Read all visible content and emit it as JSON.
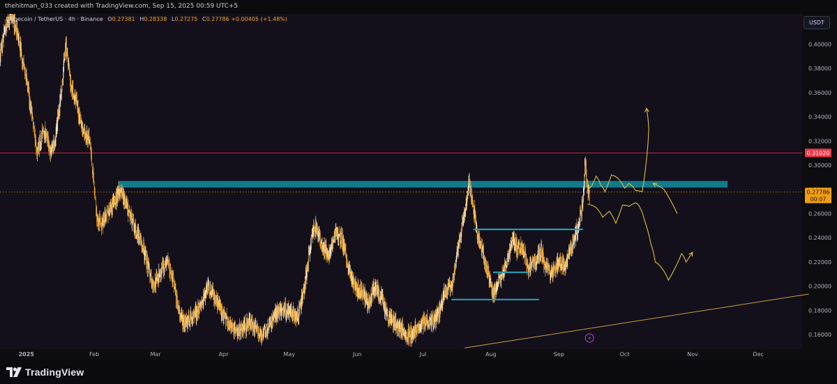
{
  "header": {
    "credit": "thehitman_033 created with TradingView.com, Sep 15, 2025 00:59 UTC+5"
  },
  "legend": {
    "symbol": "Dogecoin / TetherUS · 4h · Binance",
    "open_label": "O",
    "open": "0.27381",
    "high_label": "H",
    "high": "0.28338",
    "low_label": "L",
    "low": "0.27275",
    "close_label": "C",
    "close": "0.27786",
    "change": "+0.00405 (+1.48%)"
  },
  "currency_button": "USDT",
  "footer": {
    "brand": "TradingView"
  },
  "colors": {
    "background": "#130f1b",
    "candle": "#f5a524",
    "candle_highlight": "#ffffff",
    "resistance_zone": "#127a8a",
    "support_line": "#2a9bb0",
    "red_level": "#f23645",
    "price_label": "#f59e0b",
    "projection": "#d9c142",
    "trendline": "#c9a23a",
    "event_icon": "#b04fd6"
  },
  "icons": {
    "event": "lightning-icon",
    "logo": "tradingview-logo-icon"
  },
  "chart_data": {
    "type": "candlestick",
    "y_axis": {
      "range": [
        0.148,
        0.425
      ],
      "ticks": [
        0.16,
        0.18,
        0.2,
        0.22,
        0.24,
        0.26,
        0.28,
        0.3,
        0.32,
        0.34,
        0.36,
        0.38,
        0.4
      ],
      "tick_labels": [
        "0.16000",
        "0.18000",
        "0.20000",
        "0.22000",
        "0.24000",
        "0.26000",
        "0.28000",
        "0.30000",
        "0.32000",
        "0.34000",
        "0.36000",
        "0.38000",
        "0.40000"
      ],
      "position": "right"
    },
    "x_axis": {
      "start": "2024-12-20",
      "end": "2025-12-21",
      "month_labels": [
        {
          "date": "2025-01-01",
          "label": "2025",
          "bold": true
        },
        {
          "date": "2025-02-01",
          "label": "Feb"
        },
        {
          "date": "2025-03-01",
          "label": "Mar"
        },
        {
          "date": "2025-04-01",
          "label": "Apr"
        },
        {
          "date": "2025-05-01",
          "label": "May"
        },
        {
          "date": "2025-06-01",
          "label": "Jun"
        },
        {
          "date": "2025-07-01",
          "label": "Jul"
        },
        {
          "date": "2025-08-01",
          "label": "Aug"
        },
        {
          "date": "2025-09-01",
          "label": "Sep"
        },
        {
          "date": "2025-10-01",
          "label": "Oct"
        },
        {
          "date": "2025-11-01",
          "label": "Nov"
        },
        {
          "date": "2025-12-01",
          "label": "Dec"
        }
      ]
    },
    "price_path": [
      [
        "2024-12-20",
        0.39
      ],
      [
        "2024-12-22",
        0.41
      ],
      [
        "2024-12-25",
        0.425
      ],
      [
        "2024-12-28",
        0.41
      ],
      [
        "2024-12-31",
        0.38
      ],
      [
        "2025-01-02",
        0.36
      ],
      [
        "2025-01-04",
        0.335
      ],
      [
        "2025-01-06",
        0.31
      ],
      [
        "2025-01-09",
        0.33
      ],
      [
        "2025-01-12",
        0.31
      ],
      [
        "2025-01-14",
        0.32
      ],
      [
        "2025-01-17",
        0.36
      ],
      [
        "2025-01-19",
        0.4
      ],
      [
        "2025-01-21",
        0.37
      ],
      [
        "2025-01-24",
        0.35
      ],
      [
        "2025-01-27",
        0.33
      ],
      [
        "2025-01-30",
        0.32
      ],
      [
        "2025-02-02",
        0.26
      ],
      [
        "2025-02-04",
        0.25
      ],
      [
        "2025-02-07",
        0.26
      ],
      [
        "2025-02-10",
        0.27
      ],
      [
        "2025-02-13",
        0.28
      ],
      [
        "2025-02-16",
        0.265
      ],
      [
        "2025-02-19",
        0.25
      ],
      [
        "2025-02-22",
        0.24
      ],
      [
        "2025-02-25",
        0.22
      ],
      [
        "2025-02-28",
        0.2
      ],
      [
        "2025-03-03",
        0.21
      ],
      [
        "2025-03-06",
        0.22
      ],
      [
        "2025-03-09",
        0.205
      ],
      [
        "2025-03-12",
        0.175
      ],
      [
        "2025-03-15",
        0.17
      ],
      [
        "2025-03-18",
        0.175
      ],
      [
        "2025-03-21",
        0.18
      ],
      [
        "2025-03-25",
        0.2
      ],
      [
        "2025-03-28",
        0.19
      ],
      [
        "2025-04-01",
        0.175
      ],
      [
        "2025-04-04",
        0.168
      ],
      [
        "2025-04-07",
        0.163
      ],
      [
        "2025-04-10",
        0.165
      ],
      [
        "2025-04-13",
        0.17
      ],
      [
        "2025-04-16",
        0.163
      ],
      [
        "2025-04-19",
        0.16
      ],
      [
        "2025-04-22",
        0.168
      ],
      [
        "2025-04-25",
        0.178
      ],
      [
        "2025-04-28",
        0.18
      ],
      [
        "2025-05-02",
        0.18
      ],
      [
        "2025-05-05",
        0.175
      ],
      [
        "2025-05-08",
        0.2
      ],
      [
        "2025-05-11",
        0.24
      ],
      [
        "2025-05-13",
        0.25
      ],
      [
        "2025-05-16",
        0.235
      ],
      [
        "2025-05-19",
        0.225
      ],
      [
        "2025-05-22",
        0.245
      ],
      [
        "2025-05-25",
        0.24
      ],
      [
        "2025-05-28",
        0.215
      ],
      [
        "2025-05-31",
        0.2
      ],
      [
        "2025-06-03",
        0.195
      ],
      [
        "2025-06-06",
        0.185
      ],
      [
        "2025-06-09",
        0.2
      ],
      [
        "2025-06-12",
        0.19
      ],
      [
        "2025-06-15",
        0.175
      ],
      [
        "2025-06-18",
        0.17
      ],
      [
        "2025-06-21",
        0.165
      ],
      [
        "2025-06-24",
        0.16
      ],
      [
        "2025-06-27",
        0.162
      ],
      [
        "2025-06-30",
        0.168
      ],
      [
        "2025-07-03",
        0.172
      ],
      [
        "2025-07-06",
        0.17
      ],
      [
        "2025-07-09",
        0.18
      ],
      [
        "2025-07-11",
        0.195
      ],
      [
        "2025-07-14",
        0.2
      ],
      [
        "2025-07-17",
        0.23
      ],
      [
        "2025-07-19",
        0.25
      ],
      [
        "2025-07-21",
        0.27
      ],
      [
        "2025-07-22",
        0.285
      ],
      [
        "2025-07-24",
        0.265
      ],
      [
        "2025-07-26",
        0.24
      ],
      [
        "2025-07-28",
        0.23
      ],
      [
        "2025-07-31",
        0.21
      ],
      [
        "2025-08-02",
        0.195
      ],
      [
        "2025-08-04",
        0.2
      ],
      [
        "2025-08-07",
        0.215
      ],
      [
        "2025-08-09",
        0.225
      ],
      [
        "2025-08-11",
        0.24
      ],
      [
        "2025-08-13",
        0.23
      ],
      [
        "2025-08-15",
        0.235
      ],
      [
        "2025-08-18",
        0.215
      ],
      [
        "2025-08-21",
        0.22
      ],
      [
        "2025-08-24",
        0.23
      ],
      [
        "2025-08-26",
        0.215
      ],
      [
        "2025-08-29",
        0.21
      ],
      [
        "2025-09-01",
        0.22
      ],
      [
        "2025-09-04",
        0.215
      ],
      [
        "2025-09-06",
        0.23
      ],
      [
        "2025-09-08",
        0.24
      ],
      [
        "2025-09-10",
        0.25
      ],
      [
        "2025-09-12",
        0.27
      ],
      [
        "2025-09-13",
        0.305
      ],
      [
        "2025-09-14",
        0.28
      ],
      [
        "2025-09-15",
        0.278
      ]
    ],
    "volatility": 0.012,
    "resistance_zone": {
      "from": "2025-02-12",
      "to": "2025-11-17",
      "top": 0.287,
      "bottom": 0.2815
    },
    "support_lines": [
      {
        "from": "2025-07-24",
        "to": "2025-09-12",
        "price": 0.247
      },
      {
        "from": "2025-08-02",
        "to": "2025-08-18",
        "price": 0.2115
      },
      {
        "from": "2025-07-14",
        "to": "2025-08-23",
        "price": 0.189
      }
    ],
    "level_lines": [
      {
        "price": 0.3102,
        "label": "0.31020",
        "style": "solid-red"
      },
      {
        "price": 0.27786,
        "label": "0.27786",
        "sublabel": "00:07",
        "style": "dotted-current"
      }
    ],
    "trendline": {
      "from": [
        "2025-07-20",
        0.149
      ],
      "to": [
        "2025-12-24",
        0.1935
      ]
    },
    "projections": {
      "bullish": [
        [
          "2025-09-14",
          0.279
        ],
        [
          "2025-09-16",
          0.283
        ],
        [
          "2025-09-18",
          0.291
        ],
        [
          "2025-09-20",
          0.284
        ],
        [
          "2025-09-22",
          0.278
        ],
        [
          "2025-09-25",
          0.292
        ],
        [
          "2025-09-28",
          0.289
        ],
        [
          "2025-10-01",
          0.281
        ],
        [
          "2025-10-03",
          0.285
        ],
        [
          "2025-10-06",
          0.279
        ],
        [
          "2025-10-09",
          0.278
        ],
        [
          "2025-10-11",
          0.305
        ],
        [
          "2025-10-12",
          0.33
        ],
        [
          "2025-10-11",
          0.347
        ]
      ],
      "bearish": [
        [
          "2025-09-14",
          0.268
        ],
        [
          "2025-09-18",
          0.265
        ],
        [
          "2025-09-21",
          0.257
        ],
        [
          "2025-09-24",
          0.262
        ],
        [
          "2025-09-27",
          0.252
        ],
        [
          "2025-09-30",
          0.267
        ],
        [
          "2025-10-03",
          0.266
        ],
        [
          "2025-10-06",
          0.269
        ],
        [
          "2025-10-08",
          0.265
        ],
        [
          "2025-10-10",
          0.255
        ],
        [
          "2025-10-13",
          0.235
        ],
        [
          "2025-10-15",
          0.22
        ],
        [
          "2025-10-18",
          0.215
        ],
        [
          "2025-10-21",
          0.205
        ],
        [
          "2025-10-24",
          0.215
        ],
        [
          "2025-10-27",
          0.227
        ],
        [
          "2025-10-29",
          0.22
        ],
        [
          "2025-11-01",
          0.228
        ]
      ],
      "retest_arrow": [
        [
          "2025-10-14",
          0.285
        ],
        [
          "2025-10-19",
          0.28
        ],
        [
          "2025-10-25",
          0.26
        ]
      ]
    }
  }
}
